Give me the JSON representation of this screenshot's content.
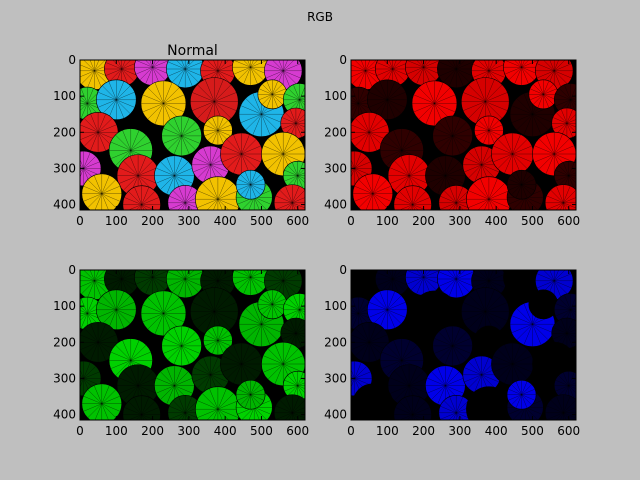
{
  "window": {
    "title": "RGB"
  },
  "figure": {
    "suptitle": "RGB",
    "background": "#bfbfbf"
  },
  "chart_data": [
    {
      "type": "image",
      "title": "Normal",
      "channel": "rgb",
      "xlim": [
        0,
        620
      ],
      "ylim": [
        415,
        0
      ],
      "xticks": [
        0,
        100,
        200,
        300,
        400,
        500,
        600
      ],
      "yticks": [
        0,
        100,
        200,
        300,
        400
      ],
      "content": "colorful paper rosettes (pinwheels) in red, yellow, green, cyan, blue, magenta"
    },
    {
      "type": "image",
      "title": "",
      "channel": "red",
      "xlim": [
        0,
        620
      ],
      "ylim": [
        415,
        0
      ],
      "xticks": [
        0,
        100,
        200,
        300,
        400,
        500,
        600
      ],
      "yticks": [
        0,
        100,
        200,
        300,
        400
      ],
      "content": "red channel of the rosettes image"
    },
    {
      "type": "image",
      "title": "",
      "channel": "green",
      "xlim": [
        0,
        620
      ],
      "ylim": [
        415,
        0
      ],
      "xticks": [
        0,
        100,
        200,
        300,
        400,
        500,
        600
      ],
      "yticks": [
        0,
        100,
        200,
        300,
        400
      ],
      "content": "green channel of the rosettes image"
    },
    {
      "type": "image",
      "title": "",
      "channel": "blue",
      "xlim": [
        0,
        620
      ],
      "ylim": [
        415,
        0
      ],
      "xticks": [
        0,
        100,
        200,
        300,
        400,
        500,
        600
      ],
      "yticks": [
        0,
        100,
        200,
        300,
        400
      ],
      "content": "blue channel of the rosettes image"
    }
  ]
}
